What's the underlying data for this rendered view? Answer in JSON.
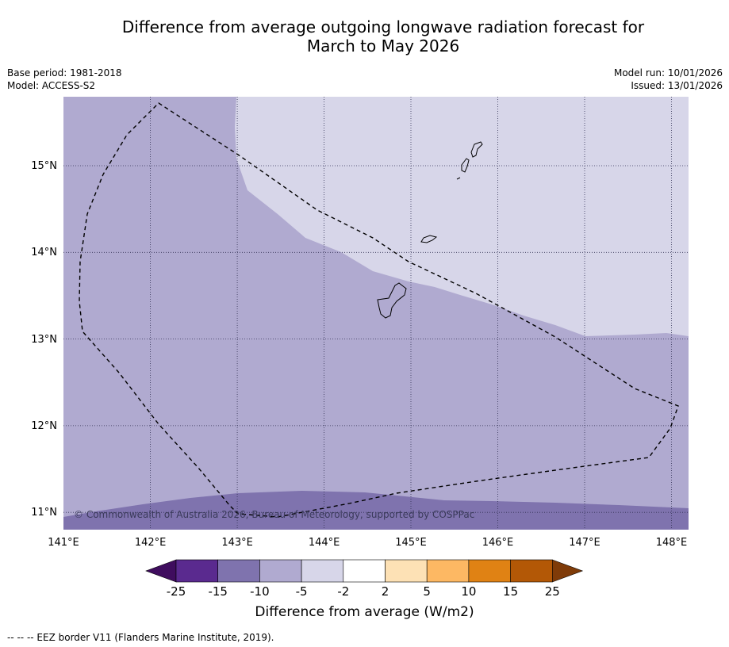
{
  "title_line1": "Difference from average outgoing longwave radiation forecast for",
  "title_line2": "March to May 2026",
  "base_period": "Base period: 1981-2018",
  "model": "Model: ACCESS-S2",
  "model_run": "Model run: 10/01/2026",
  "issued": "Issued: 13/01/2026",
  "copyright": "© Commonwealth of Australia 2026, Bureau of Meteorology, supported by COSPPac",
  "lat_labels": [
    "15°N",
    "14°N",
    "13°N",
    "12°N",
    "11°N"
  ],
  "lon_labels": [
    "141°E",
    "142°E",
    "143°E",
    "144°E",
    "145°E",
    "146°E",
    "147°E",
    "148°E"
  ],
  "colorbar": {
    "title": "Difference from average (W/m2)",
    "labels": [
      "-25",
      "-15",
      "-10",
      "-5",
      "-2",
      "2",
      "5",
      "10",
      "15",
      "25"
    ],
    "colors": [
      "#3f0d5e",
      "#5a2a8f",
      "#7f73ae",
      "#b0aad0",
      "#d7d6e9",
      "#ffffff",
      "#fde1b5",
      "#fdb863",
      "#e08214",
      "#b35806",
      "#7f3b08"
    ]
  },
  "eez_note": "--  --  -- EEZ border V11 (Flanders Marine Institute, 2019).",
  "colors": {
    "band_minus_10_to_minus_5": "#b0aad0",
    "band_minus_5_to_minus_2": "#d7d6e9",
    "band_minus_15_to_minus_10": "#7f73ae"
  }
}
